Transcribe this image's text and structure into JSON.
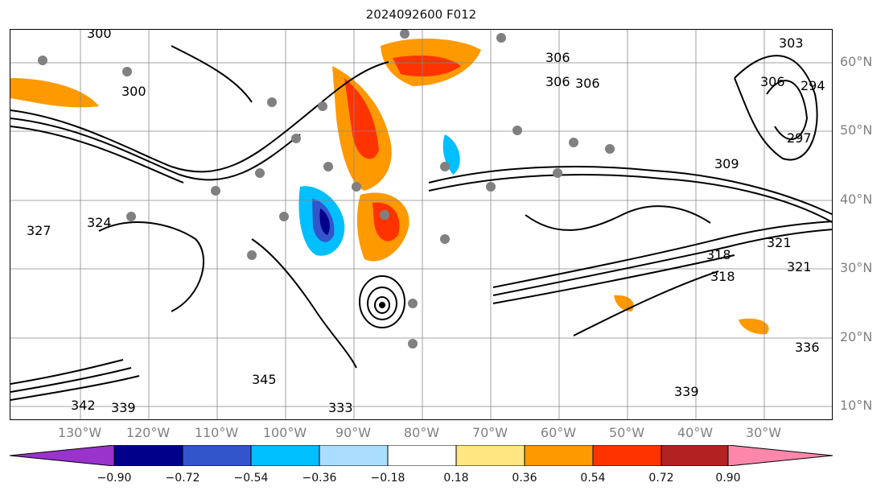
{
  "title": "2024092600 F012",
  "lat_labels": [
    "60°N",
    "50°N",
    "40°N",
    "30°N",
    "20°N",
    "10°N"
  ],
  "lon_labels": [
    "130°W",
    "120°W",
    "110°W",
    "100°W",
    "90°W",
    "80°W",
    "70°W",
    "60°W",
    "50°W",
    "40°W",
    "30°W"
  ],
  "colorbar": {
    "tick_labels": [
      "−0.90",
      "−0.72",
      "−0.54",
      "−0.36",
      "−0.18",
      "0.18",
      "0.36",
      "0.54",
      "0.72",
      "0.90"
    ],
    "colors": [
      "#9933cc",
      "#00008b",
      "#3355cc",
      "#00bfff",
      "#aaddff",
      "#ffffff",
      "#ffe680",
      "#ff9900",
      "#ff3300",
      "#b22222",
      "#ff88aa"
    ]
  },
  "contour_labels": [
    "300",
    "300",
    "306",
    "306",
    "306",
    "306",
    "303",
    "294",
    "297",
    "309",
    "324",
    "327",
    "318",
    "321",
    "321",
    "318",
    "336",
    "342",
    "339",
    "345",
    "333",
    "339"
  ]
}
